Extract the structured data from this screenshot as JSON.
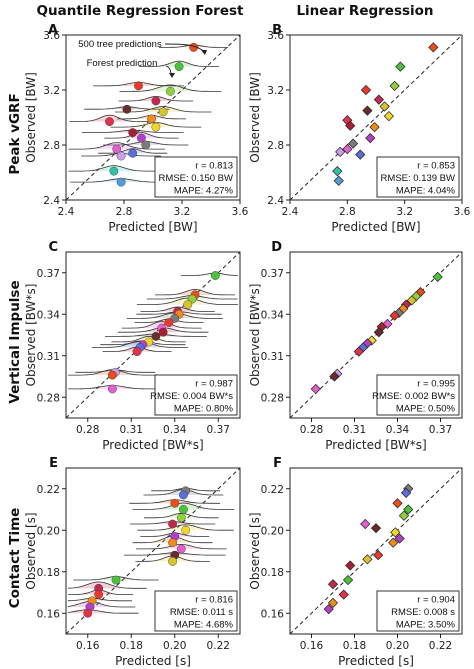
{
  "figure": {
    "column_titles": [
      "Quantile Regression Forest",
      "Linear Regression"
    ],
    "row_titles": [
      "Peak vGRF",
      "Vertical Impulse",
      "Contact Time"
    ]
  },
  "chart_data": [
    {
      "letter": "A",
      "type": "scatter",
      "method": "qrf",
      "xlabel": "Predicted [BW]",
      "ylabel": "Observed [BW]",
      "xlim": [
        2.4,
        3.6
      ],
      "ylim": [
        2.4,
        3.6
      ],
      "ticks": [
        2.4,
        2.8,
        3.2,
        3.6
      ],
      "tick_labels": [
        "2.4",
        "2.8",
        "3.2",
        "3.6"
      ],
      "stats": [
        "r = 0.813",
        "RMSE: 0.150 BW",
        "MAPE: 4.27%"
      ],
      "annotations": [
        "500 tree predictions",
        "Forest prediction"
      ],
      "points": [
        {
          "x": 3.28,
          "y": 3.51,
          "c": "#e84e1b",
          "s": "circle"
        },
        {
          "x": 3.18,
          "y": 3.37,
          "c": "#4cc23c",
          "s": "circle"
        },
        {
          "x": 2.9,
          "y": 3.23,
          "c": "#e8392c",
          "s": "circle"
        },
        {
          "x": 3.12,
          "y": 3.19,
          "c": "#8fd13c",
          "s": "circle"
        },
        {
          "x": 3.02,
          "y": 3.12,
          "c": "#c22850",
          "s": "circle"
        },
        {
          "x": 2.82,
          "y": 3.06,
          "c": "#6b2c2c",
          "s": "circle"
        },
        {
          "x": 3.07,
          "y": 3.04,
          "c": "#d8c42a",
          "s": "circle"
        },
        {
          "x": 2.99,
          "y": 2.99,
          "c": "#f08a1c",
          "s": "circle"
        },
        {
          "x": 2.7,
          "y": 2.97,
          "c": "#e0324a",
          "s": "circle"
        },
        {
          "x": 3.02,
          "y": 2.93,
          "c": "#f2d52a",
          "s": "circle"
        },
        {
          "x": 2.86,
          "y": 2.89,
          "c": "#a82030",
          "s": "circle"
        },
        {
          "x": 2.92,
          "y": 2.85,
          "c": "#b53ec8",
          "s": "circle"
        },
        {
          "x": 2.95,
          "y": 2.8,
          "c": "#7b7b7b",
          "s": "circle"
        },
        {
          "x": 2.75,
          "y": 2.77,
          "c": "#e35fd0",
          "s": "circle"
        },
        {
          "x": 2.86,
          "y": 2.74,
          "c": "#5a6ed8",
          "s": "circle"
        },
        {
          "x": 2.78,
          "y": 2.72,
          "c": "#c8a0e8",
          "s": "circle"
        },
        {
          "x": 2.73,
          "y": 2.61,
          "c": "#30c0a8",
          "s": "circle"
        },
        {
          "x": 2.78,
          "y": 2.53,
          "c": "#4fa0d8",
          "s": "circle"
        }
      ]
    },
    {
      "letter": "B",
      "type": "scatter",
      "method": "lr",
      "xlabel": "Predicted [BW]",
      "ylabel": "Observed [BW]",
      "xlim": [
        2.4,
        3.6
      ],
      "ylim": [
        2.4,
        3.6
      ],
      "ticks": [
        2.4,
        2.8,
        3.2,
        3.6
      ],
      "tick_labels": [
        "2.4",
        "2.8",
        "3.2",
        "3.6"
      ],
      "stats": [
        "r = 0.853",
        "RMSE: 0.139 BW",
        "MAPE: 4.04%"
      ],
      "points": [
        {
          "x": 3.4,
          "y": 3.51,
          "c": "#e84e1b",
          "s": "diamond"
        },
        {
          "x": 3.17,
          "y": 3.37,
          "c": "#4cc23c",
          "s": "diamond"
        },
        {
          "x": 3.13,
          "y": 3.23,
          "c": "#8fd13c",
          "s": "diamond"
        },
        {
          "x": 2.93,
          "y": 3.2,
          "c": "#e8392c",
          "s": "diamond"
        },
        {
          "x": 3.02,
          "y": 3.13,
          "c": "#c22850",
          "s": "diamond"
        },
        {
          "x": 3.06,
          "y": 3.08,
          "c": "#d8c42a",
          "s": "diamond"
        },
        {
          "x": 2.94,
          "y": 3.05,
          "c": "#6b2c2c",
          "s": "diamond"
        },
        {
          "x": 3.09,
          "y": 3.01,
          "c": "#f2d52a",
          "s": "diamond"
        },
        {
          "x": 2.8,
          "y": 2.98,
          "c": "#e0324a",
          "s": "diamond"
        },
        {
          "x": 2.82,
          "y": 2.94,
          "c": "#a82030",
          "s": "diamond"
        },
        {
          "x": 2.99,
          "y": 2.93,
          "c": "#f08a1c",
          "s": "diamond"
        },
        {
          "x": 2.96,
          "y": 2.85,
          "c": "#b53ec8",
          "s": "diamond"
        },
        {
          "x": 2.84,
          "y": 2.81,
          "c": "#7b7b7b",
          "s": "diamond"
        },
        {
          "x": 2.8,
          "y": 2.77,
          "c": "#e35fd0",
          "s": "diamond"
        },
        {
          "x": 2.75,
          "y": 2.75,
          "c": "#c8a0e8",
          "s": "diamond"
        },
        {
          "x": 2.89,
          "y": 2.73,
          "c": "#5a6ed8",
          "s": "diamond"
        },
        {
          "x": 2.73,
          "y": 2.61,
          "c": "#30c0a8",
          "s": "diamond"
        },
        {
          "x": 2.74,
          "y": 2.54,
          "c": "#4fa0d8",
          "s": "diamond"
        }
      ]
    },
    {
      "letter": "C",
      "type": "scatter",
      "method": "qrf",
      "xlabel": "Predicted [BW*s]",
      "ylabel": "Observed [BW*s]",
      "xlim": [
        0.265,
        0.385
      ],
      "ylim": [
        0.265,
        0.385
      ],
      "ticks": [
        0.28,
        0.31,
        0.34,
        0.37
      ],
      "tick_labels": [
        "0.28",
        "0.31",
        "0.34",
        "0.37"
      ],
      "stats": [
        "r = 0.987",
        "RMSE: 0.004 BW*s",
        "MAPE: 0.80%"
      ],
      "points": [
        {
          "x": 0.368,
          "y": 0.368,
          "c": "#4cc23c",
          "s": "circle"
        },
        {
          "x": 0.354,
          "y": 0.354,
          "c": "#e84e1b",
          "s": "circle"
        },
        {
          "x": 0.352,
          "y": 0.351,
          "c": "#8fd13c",
          "s": "circle"
        },
        {
          "x": 0.349,
          "y": 0.347,
          "c": "#d8c42a",
          "s": "circle"
        },
        {
          "x": 0.342,
          "y": 0.342,
          "c": "#c22850",
          "s": "circle"
        },
        {
          "x": 0.343,
          "y": 0.34,
          "c": "#f08a1c",
          "s": "circle"
        },
        {
          "x": 0.34,
          "y": 0.337,
          "c": "#7b7b7b",
          "s": "circle"
        },
        {
          "x": 0.336,
          "y": 0.334,
          "c": "#e8392c",
          "s": "circle"
        },
        {
          "x": 0.331,
          "y": 0.33,
          "c": "#e35fd0",
          "s": "circle"
        },
        {
          "x": 0.332,
          "y": 0.327,
          "c": "#a82030",
          "s": "circle"
        },
        {
          "x": 0.327,
          "y": 0.324,
          "c": "#6b2c2c",
          "s": "circle"
        },
        {
          "x": 0.322,
          "y": 0.32,
          "c": "#f2d52a",
          "s": "circle"
        },
        {
          "x": 0.318,
          "y": 0.318,
          "c": "#b53ec8",
          "s": "circle"
        },
        {
          "x": 0.316,
          "y": 0.316,
          "c": "#5a6ed8",
          "s": "circle"
        },
        {
          "x": 0.314,
          "y": 0.313,
          "c": "#e0324a",
          "s": "circle"
        },
        {
          "x": 0.299,
          "y": 0.298,
          "c": "#c8a0e8",
          "s": "circle"
        },
        {
          "x": 0.297,
          "y": 0.296,
          "c": "#e84e1b",
          "s": "circle"
        },
        {
          "x": 0.297,
          "y": 0.286,
          "c": "#e35fd0",
          "s": "circle"
        }
      ]
    },
    {
      "letter": "D",
      "type": "scatter",
      "method": "lr",
      "xlabel": "Predicted [BW*s]",
      "ylabel": "Observed [BW*s]",
      "xlim": [
        0.265,
        0.385
      ],
      "ylim": [
        0.265,
        0.385
      ],
      "ticks": [
        0.28,
        0.31,
        0.34,
        0.37
      ],
      "tick_labels": [
        "0.28",
        "0.31",
        "0.34",
        "0.37"
      ],
      "stats": [
        "r = 0.995",
        "RMSE: 0.002 BW*s",
        "MAPE: 0.50%"
      ],
      "points": [
        {
          "x": 0.368,
          "y": 0.367,
          "c": "#4cc23c",
          "s": "diamond"
        },
        {
          "x": 0.356,
          "y": 0.356,
          "c": "#e84e1b",
          "s": "diamond"
        },
        {
          "x": 0.353,
          "y": 0.353,
          "c": "#8fd13c",
          "s": "diamond"
        },
        {
          "x": 0.35,
          "y": 0.35,
          "c": "#d8c42a",
          "s": "diamond"
        },
        {
          "x": 0.346,
          "y": 0.347,
          "c": "#c22850",
          "s": "diamond"
        },
        {
          "x": 0.344,
          "y": 0.344,
          "c": "#f08a1c",
          "s": "diamond"
        },
        {
          "x": 0.341,
          "y": 0.341,
          "c": "#7b7b7b",
          "s": "diamond"
        },
        {
          "x": 0.338,
          "y": 0.339,
          "c": "#e8392c",
          "s": "diamond"
        },
        {
          "x": 0.333,
          "y": 0.333,
          "c": "#e35fd0",
          "s": "diamond"
        },
        {
          "x": 0.329,
          "y": 0.331,
          "c": "#a82030",
          "s": "diamond"
        },
        {
          "x": 0.327,
          "y": 0.327,
          "c": "#6b2c2c",
          "s": "diamond"
        },
        {
          "x": 0.322,
          "y": 0.321,
          "c": "#f2d52a",
          "s": "diamond"
        },
        {
          "x": 0.319,
          "y": 0.319,
          "c": "#b53ec8",
          "s": "diamond"
        },
        {
          "x": 0.316,
          "y": 0.316,
          "c": "#5a6ed8",
          "s": "diamond"
        },
        {
          "x": 0.313,
          "y": 0.313,
          "c": "#e0324a",
          "s": "diamond"
        },
        {
          "x": 0.298,
          "y": 0.297,
          "c": "#c8a0e8",
          "s": "diamond"
        },
        {
          "x": 0.296,
          "y": 0.295,
          "c": "#6b2c2c",
          "s": "diamond"
        },
        {
          "x": 0.283,
          "y": 0.286,
          "c": "#e35fd0",
          "s": "diamond"
        }
      ]
    },
    {
      "letter": "E",
      "type": "scatter",
      "method": "qrf",
      "xlabel": "Predicted [s]",
      "ylabel": "Observed [s]",
      "xlim": [
        0.15,
        0.23
      ],
      "ylim": [
        0.15,
        0.23
      ],
      "ticks": [
        0.16,
        0.18,
        0.2,
        0.22
      ],
      "tick_labels": [
        "0.16",
        "0.18",
        "0.20",
        "0.22"
      ],
      "stats": [
        "r = 0.816",
        "RMSE: 0.011 s",
        "MAPE: 4.68%"
      ],
      "points": [
        {
          "x": 0.205,
          "y": 0.219,
          "c": "#7b7b7b",
          "s": "circle"
        },
        {
          "x": 0.204,
          "y": 0.217,
          "c": "#5a6ed8",
          "s": "circle"
        },
        {
          "x": 0.2,
          "y": 0.213,
          "c": "#e84e1b",
          "s": "circle"
        },
        {
          "x": 0.204,
          "y": 0.21,
          "c": "#4cc23c",
          "s": "circle"
        },
        {
          "x": 0.203,
          "y": 0.206,
          "c": "#8fd13c",
          "s": "circle"
        },
        {
          "x": 0.199,
          "y": 0.203,
          "c": "#c22850",
          "s": "circle"
        },
        {
          "x": 0.205,
          "y": 0.2,
          "c": "#f2d52a",
          "s": "circle"
        },
        {
          "x": 0.2,
          "y": 0.197,
          "c": "#b53ec8",
          "s": "circle"
        },
        {
          "x": 0.199,
          "y": 0.194,
          "c": "#f08a1c",
          "s": "circle"
        },
        {
          "x": 0.203,
          "y": 0.191,
          "c": "#e35fd0",
          "s": "circle"
        },
        {
          "x": 0.2,
          "y": 0.188,
          "c": "#6b2c2c",
          "s": "circle"
        },
        {
          "x": 0.199,
          "y": 0.185,
          "c": "#d8c42a",
          "s": "circle"
        },
        {
          "x": 0.173,
          "y": 0.176,
          "c": "#4cc23c",
          "s": "circle"
        },
        {
          "x": 0.165,
          "y": 0.172,
          "c": "#c22850",
          "s": "circle"
        },
        {
          "x": 0.165,
          "y": 0.169,
          "c": "#e8392c",
          "s": "circle"
        },
        {
          "x": 0.162,
          "y": 0.166,
          "c": "#f08a1c",
          "s": "circle"
        },
        {
          "x": 0.161,
          "y": 0.163,
          "c": "#b53ec8",
          "s": "circle"
        },
        {
          "x": 0.16,
          "y": 0.16,
          "c": "#e0324a",
          "s": "circle"
        }
      ]
    },
    {
      "letter": "F",
      "type": "scatter",
      "method": "lr",
      "xlabel": "Predicted [s]",
      "ylabel": "Observed [s]",
      "xlim": [
        0.15,
        0.23
      ],
      "ylim": [
        0.15,
        0.23
      ],
      "ticks": [
        0.16,
        0.18,
        0.2,
        0.22
      ],
      "tick_labels": [
        "0.16",
        "0.18",
        "0.20",
        "0.22"
      ],
      "stats": [
        "r = 0.904",
        "RMSE: 0.008 s",
        "MAPE: 3.50%"
      ],
      "points": [
        {
          "x": 0.205,
          "y": 0.22,
          "c": "#7b7b7b",
          "s": "diamond"
        },
        {
          "x": 0.204,
          "y": 0.218,
          "c": "#5a6ed8",
          "s": "diamond"
        },
        {
          "x": 0.2,
          "y": 0.213,
          "c": "#e84e1b",
          "s": "diamond"
        },
        {
          "x": 0.205,
          "y": 0.21,
          "c": "#4cc23c",
          "s": "diamond"
        },
        {
          "x": 0.203,
          "y": 0.207,
          "c": "#8fd13c",
          "s": "diamond"
        },
        {
          "x": 0.185,
          "y": 0.203,
          "c": "#e35fd0",
          "s": "diamond"
        },
        {
          "x": 0.19,
          "y": 0.201,
          "c": "#6b2c2c",
          "s": "diamond"
        },
        {
          "x": 0.199,
          "y": 0.199,
          "c": "#f2d52a",
          "s": "diamond"
        },
        {
          "x": 0.201,
          "y": 0.196,
          "c": "#b53ec8",
          "s": "diamond"
        },
        {
          "x": 0.198,
          "y": 0.194,
          "c": "#f08a1c",
          "s": "diamond"
        },
        {
          "x": 0.191,
          "y": 0.188,
          "c": "#e8392c",
          "s": "diamond"
        },
        {
          "x": 0.186,
          "y": 0.186,
          "c": "#d8c42a",
          "s": "diamond"
        },
        {
          "x": 0.178,
          "y": 0.183,
          "c": "#a82030",
          "s": "diamond"
        },
        {
          "x": 0.177,
          "y": 0.176,
          "c": "#4cc23c",
          "s": "diamond"
        },
        {
          "x": 0.17,
          "y": 0.174,
          "c": "#c22850",
          "s": "diamond"
        },
        {
          "x": 0.175,
          "y": 0.169,
          "c": "#e0324a",
          "s": "diamond"
        },
        {
          "x": 0.17,
          "y": 0.165,
          "c": "#f08a1c",
          "s": "diamond"
        },
        {
          "x": 0.168,
          "y": 0.162,
          "c": "#b53ec8",
          "s": "diamond"
        }
      ]
    }
  ]
}
